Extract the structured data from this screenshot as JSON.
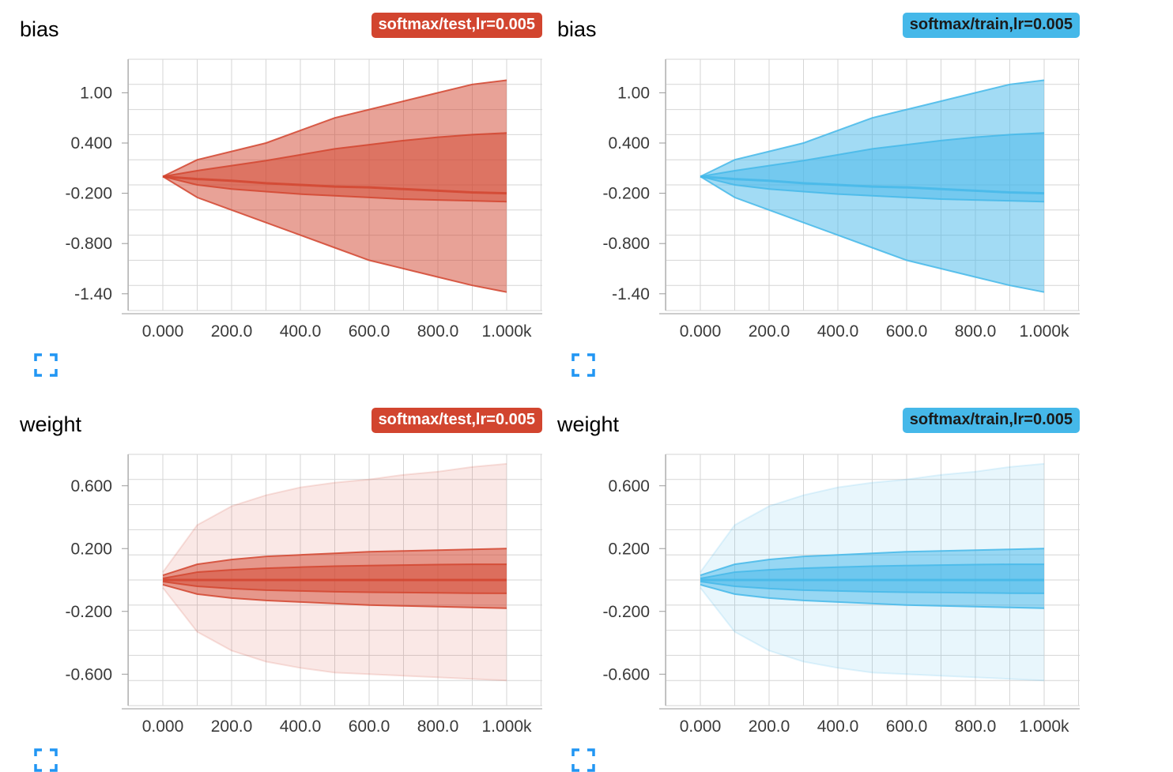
{
  "charts": [
    {
      "title": "bias",
      "run_label": "softmax/test,lr=0.005",
      "color": "#d2452f",
      "chart_data": {
        "type": "area",
        "title": "bias",
        "x_ticks": [
          "0.000",
          "200.0",
          "400.0",
          "600.0",
          "800.0",
          "1.000k"
        ],
        "y_ticks": [
          "1.00",
          "0.400",
          "-0.200",
          "-0.800",
          "-1.40"
        ],
        "xlim": [
          0,
          1000
        ],
        "ylim": [
          -1.6,
          1.4
        ],
        "series": [
          {
            "x": [
              0,
              100,
              200,
              300,
              400,
              500,
              600,
              700,
              800,
              900,
              1000
            ],
            "values": [
              0,
              0.2,
              0.3,
              0.4,
              0.55,
              0.7,
              0.8,
              0.9,
              1.0,
              1.1,
              1.15
            ]
          },
          {
            "x": [
              0,
              100,
              200,
              300,
              400,
              500,
              600,
              700,
              800,
              900,
              1000
            ],
            "values": [
              0,
              0.07,
              0.13,
              0.19,
              0.26,
              0.33,
              0.38,
              0.43,
              0.47,
              0.5,
              0.52
            ]
          },
          {
            "x": [
              0,
              100,
              200,
              300,
              400,
              500,
              600,
              700,
              800,
              900,
              1000
            ],
            "values": [
              0,
              -0.03,
              -0.05,
              -0.08,
              -0.1,
              -0.12,
              -0.13,
              -0.15,
              -0.17,
              -0.19,
              -0.2
            ]
          },
          {
            "x": [
              0,
              100,
              200,
              300,
              400,
              500,
              600,
              700,
              800,
              900,
              1000
            ],
            "values": [
              0,
              -0.1,
              -0.15,
              -0.18,
              -0.21,
              -0.23,
              -0.25,
              -0.27,
              -0.28,
              -0.29,
              -0.3
            ]
          },
          {
            "x": [
              0,
              100,
              200,
              300,
              400,
              500,
              600,
              700,
              800,
              900,
              1000
            ],
            "values": [
              0,
              -0.25,
              -0.4,
              -0.55,
              -0.7,
              -0.85,
              -1.0,
              -1.1,
              -1.2,
              -1.3,
              -1.38
            ]
          }
        ],
        "grid": true
      }
    },
    {
      "title": "bias",
      "run_label": "softmax/train,lr=0.005",
      "color": "#45b8e9",
      "chart_data": {
        "type": "area",
        "title": "bias",
        "x_ticks": [
          "0.000",
          "200.0",
          "400.0",
          "600.0",
          "800.0",
          "1.000k"
        ],
        "y_ticks": [
          "1.00",
          "0.400",
          "-0.200",
          "-0.800",
          "-1.40"
        ],
        "xlim": [
          0,
          1000
        ],
        "ylim": [
          -1.6,
          1.4
        ],
        "series": [
          {
            "x": [
              0,
              100,
              200,
              300,
              400,
              500,
              600,
              700,
              800,
              900,
              1000
            ],
            "values": [
              0,
              0.2,
              0.3,
              0.4,
              0.55,
              0.7,
              0.8,
              0.9,
              1.0,
              1.1,
              1.15
            ]
          },
          {
            "x": [
              0,
              100,
              200,
              300,
              400,
              500,
              600,
              700,
              800,
              900,
              1000
            ],
            "values": [
              0,
              0.07,
              0.13,
              0.19,
              0.26,
              0.33,
              0.38,
              0.43,
              0.47,
              0.5,
              0.52
            ]
          },
          {
            "x": [
              0,
              100,
              200,
              300,
              400,
              500,
              600,
              700,
              800,
              900,
              1000
            ],
            "values": [
              0,
              -0.03,
              -0.05,
              -0.08,
              -0.1,
              -0.12,
              -0.13,
              -0.15,
              -0.17,
              -0.19,
              -0.2
            ]
          },
          {
            "x": [
              0,
              100,
              200,
              300,
              400,
              500,
              600,
              700,
              800,
              900,
              1000
            ],
            "values": [
              0,
              -0.1,
              -0.15,
              -0.18,
              -0.21,
              -0.23,
              -0.25,
              -0.27,
              -0.28,
              -0.29,
              -0.3
            ]
          },
          {
            "x": [
              0,
              100,
              200,
              300,
              400,
              500,
              600,
              700,
              800,
              900,
              1000
            ],
            "values": [
              0,
              -0.25,
              -0.4,
              -0.55,
              -0.7,
              -0.85,
              -1.0,
              -1.1,
              -1.2,
              -1.3,
              -1.38
            ]
          }
        ],
        "grid": true
      }
    },
    {
      "title": "weight",
      "run_label": "softmax/test,lr=0.005",
      "color": "#d2452f",
      "chart_data": {
        "type": "area",
        "title": "weight",
        "x_ticks": [
          "0.000",
          "200.0",
          "400.0",
          "600.0",
          "800.0",
          "1.000k"
        ],
        "y_ticks": [
          "0.600",
          "0.200",
          "-0.200",
          "-0.600"
        ],
        "xlim": [
          0,
          1000
        ],
        "ylim": [
          -0.8,
          0.8
        ],
        "series": [
          {
            "x": [
              0,
              100,
              200,
              300,
              400,
              500,
              600,
              700,
              800,
              900,
              1000
            ],
            "values": [
              0.05,
              0.35,
              0.47,
              0.54,
              0.59,
              0.62,
              0.64,
              0.67,
              0.69,
              0.72,
              0.74
            ]
          },
          {
            "x": [
              0,
              100,
              200,
              300,
              400,
              500,
              600,
              700,
              800,
              900,
              1000
            ],
            "values": [
              0.03,
              0.1,
              0.13,
              0.15,
              0.16,
              0.17,
              0.18,
              0.185,
              0.19,
              0.195,
              0.2
            ]
          },
          {
            "x": [
              0,
              100,
              200,
              300,
              400,
              500,
              600,
              700,
              800,
              900,
              1000
            ],
            "values": [
              0.01,
              0.05,
              0.065,
              0.075,
              0.082,
              0.088,
              0.092,
              0.095,
              0.098,
              0.1,
              0.1
            ]
          },
          {
            "x": [
              0,
              100,
              200,
              300,
              400,
              500,
              600,
              700,
              800,
              900,
              1000
            ],
            "values": [
              0,
              0,
              0,
              0,
              0,
              0,
              0,
              0,
              0,
              0,
              0
            ]
          },
          {
            "x": [
              0,
              100,
              200,
              300,
              400,
              500,
              600,
              700,
              800,
              900,
              1000
            ],
            "values": [
              -0.01,
              -0.04,
              -0.055,
              -0.065,
              -0.07,
              -0.075,
              -0.078,
              -0.08,
              -0.082,
              -0.084,
              -0.085
            ]
          },
          {
            "x": [
              0,
              100,
              200,
              300,
              400,
              500,
              600,
              700,
              800,
              900,
              1000
            ],
            "values": [
              -0.03,
              -0.09,
              -0.115,
              -0.13,
              -0.14,
              -0.15,
              -0.16,
              -0.165,
              -0.17,
              -0.175,
              -0.18
            ]
          },
          {
            "x": [
              0,
              100,
              200,
              300,
              400,
              500,
              600,
              700,
              800,
              900,
              1000
            ],
            "values": [
              -0.05,
              -0.33,
              -0.45,
              -0.52,
              -0.56,
              -0.59,
              -0.6,
              -0.61,
              -0.62,
              -0.63,
              -0.64
            ]
          }
        ],
        "grid": true
      }
    },
    {
      "title": "weight",
      "run_label": "softmax/train,lr=0.005",
      "color": "#45b8e9",
      "chart_data": {
        "type": "area",
        "title": "weight",
        "x_ticks": [
          "0.000",
          "200.0",
          "400.0",
          "600.0",
          "800.0",
          "1.000k"
        ],
        "y_ticks": [
          "0.600",
          "0.200",
          "-0.200",
          "-0.600"
        ],
        "xlim": [
          0,
          1000
        ],
        "ylim": [
          -0.8,
          0.8
        ],
        "series": [
          {
            "x": [
              0,
              100,
              200,
              300,
              400,
              500,
              600,
              700,
              800,
              900,
              1000
            ],
            "values": [
              0.05,
              0.35,
              0.47,
              0.54,
              0.59,
              0.62,
              0.64,
              0.67,
              0.69,
              0.72,
              0.74
            ]
          },
          {
            "x": [
              0,
              100,
              200,
              300,
              400,
              500,
              600,
              700,
              800,
              900,
              1000
            ],
            "values": [
              0.03,
              0.1,
              0.13,
              0.15,
              0.16,
              0.17,
              0.18,
              0.185,
              0.19,
              0.195,
              0.2
            ]
          },
          {
            "x": [
              0,
              100,
              200,
              300,
              400,
              500,
              600,
              700,
              800,
              900,
              1000
            ],
            "values": [
              0.01,
              0.05,
              0.065,
              0.075,
              0.082,
              0.088,
              0.092,
              0.095,
              0.098,
              0.1,
              0.1
            ]
          },
          {
            "x": [
              0,
              100,
              200,
              300,
              400,
              500,
              600,
              700,
              800,
              900,
              1000
            ],
            "values": [
              0,
              0,
              0,
              0,
              0,
              0,
              0,
              0,
              0,
              0,
              0
            ]
          },
          {
            "x": [
              0,
              100,
              200,
              300,
              400,
              500,
              600,
              700,
              800,
              900,
              1000
            ],
            "values": [
              -0.01,
              -0.04,
              -0.055,
              -0.065,
              -0.07,
              -0.075,
              -0.078,
              -0.08,
              -0.082,
              -0.084,
              -0.085
            ]
          },
          {
            "x": [
              0,
              100,
              200,
              300,
              400,
              500,
              600,
              700,
              800,
              900,
              1000
            ],
            "values": [
              -0.03,
              -0.09,
              -0.115,
              -0.13,
              -0.14,
              -0.15,
              -0.16,
              -0.165,
              -0.17,
              -0.175,
              -0.18
            ]
          },
          {
            "x": [
              0,
              100,
              200,
              300,
              400,
              500,
              600,
              700,
              800,
              900,
              1000
            ],
            "values": [
              -0.05,
              -0.33,
              -0.45,
              -0.52,
              -0.56,
              -0.59,
              -0.6,
              -0.61,
              -0.62,
              -0.63,
              -0.64
            ]
          }
        ],
        "grid": true
      }
    }
  ],
  "expand_icon_color": "#2196f3"
}
